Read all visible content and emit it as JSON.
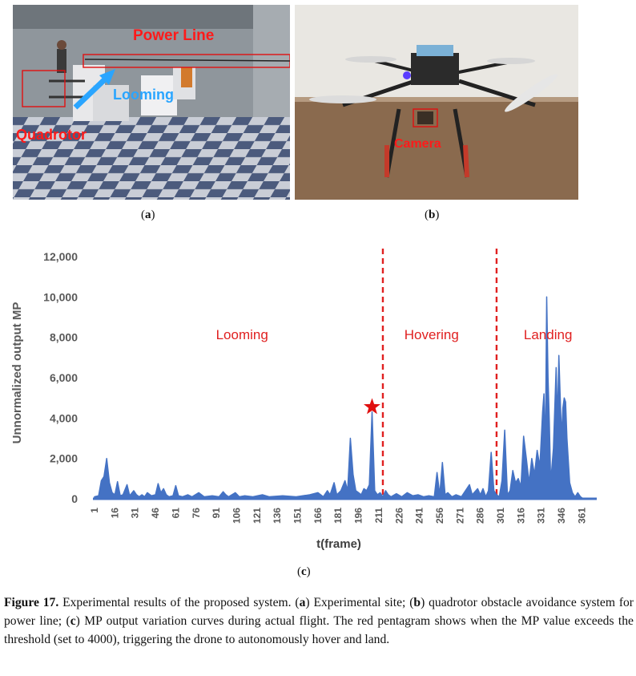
{
  "figure": {
    "panel_a": {
      "annotations": {
        "power_line": "Power Line",
        "looming": "Looming",
        "quadrotor": "Quadrotor"
      },
      "sublabel_letter": "a"
    },
    "panel_b": {
      "annotations": {
        "camera": "Camera"
      },
      "sublabel_letter": "b"
    },
    "panel_c": {
      "sublabel_letter": "c"
    },
    "caption": {
      "label": "Figure 17.",
      "text_1": " Experimental results of the proposed system. (",
      "a": "a",
      "text_2": ") Experimental site; (",
      "b": "b",
      "text_3": ") quadrotor obstacle avoidance system for power line; (",
      "c": "c",
      "text_4": ") MP output variation curves during actual flight.  The red pentagram shows when the MP value exceeds the threshold (set to 4000), triggering the drone to autonomously hover and land."
    }
  },
  "chart_data": {
    "type": "area",
    "xlabel": "t(frame)",
    "ylabel": "Unnormalized output MP",
    "ylim": [
      0,
      12000
    ],
    "yticks": [
      0,
      2000,
      4000,
      6000,
      8000,
      10000,
      12000
    ],
    "ytick_labels": [
      "0",
      "2,000",
      "4,000",
      "6,000",
      "8,000",
      "10,000",
      "12,000"
    ],
    "xlim": [
      1,
      372
    ],
    "xtick_labels": [
      "1",
      "16",
      "31",
      "46",
      "61",
      "76",
      "91",
      "106",
      "121",
      "136",
      "151",
      "166",
      "181",
      "196",
      "211",
      "226",
      "241",
      "256",
      "271",
      "286",
      "301",
      "316",
      "331",
      "346",
      "361"
    ],
    "grid": false,
    "legend": "none",
    "series_color": "#4472c4",
    "phase_line_color": "#e02020",
    "phases": [
      {
        "label": "Looming",
        "x_label": 110
      },
      {
        "label": "Hovering",
        "x_label": 250
      },
      {
        "label": "Landing",
        "x_label": 336
      }
    ],
    "phase_boundaries": [
      214,
      298
    ],
    "threshold_marker": {
      "x": 206,
      "y": 4550,
      "color": "#e01010"
    },
    "points": [
      [
        1,
        100
      ],
      [
        4,
        150
      ],
      [
        6,
        900
      ],
      [
        8,
        1100
      ],
      [
        10,
        2000
      ],
      [
        12,
        800
      ],
      [
        14,
        300
      ],
      [
        16,
        200
      ],
      [
        18,
        850
      ],
      [
        20,
        150
      ],
      [
        22,
        200
      ],
      [
        25,
        700
      ],
      [
        27,
        150
      ],
      [
        30,
        400
      ],
      [
        32,
        200
      ],
      [
        34,
        100
      ],
      [
        36,
        200
      ],
      [
        38,
        100
      ],
      [
        40,
        300
      ],
      [
        43,
        150
      ],
      [
        46,
        200
      ],
      [
        48,
        750
      ],
      [
        50,
        300
      ],
      [
        52,
        500
      ],
      [
        54,
        200
      ],
      [
        56,
        100
      ],
      [
        59,
        150
      ],
      [
        61,
        650
      ],
      [
        63,
        150
      ],
      [
        66,
        100
      ],
      [
        70,
        200
      ],
      [
        73,
        100
      ],
      [
        78,
        300
      ],
      [
        82,
        100
      ],
      [
        88,
        150
      ],
      [
        93,
        100
      ],
      [
        96,
        350
      ],
      [
        98,
        200
      ],
      [
        100,
        100
      ],
      [
        105,
        300
      ],
      [
        108,
        100
      ],
      [
        112,
        150
      ],
      [
        118,
        100
      ],
      [
        125,
        200
      ],
      [
        130,
        100
      ],
      [
        140,
        150
      ],
      [
        150,
        100
      ],
      [
        160,
        200
      ],
      [
        166,
        300
      ],
      [
        170,
        100
      ],
      [
        173,
        400
      ],
      [
        175,
        200
      ],
      [
        178,
        800
      ],
      [
        180,
        200
      ],
      [
        183,
        400
      ],
      [
        186,
        900
      ],
      [
        188,
        400
      ],
      [
        190,
        3000
      ],
      [
        192,
        1200
      ],
      [
        194,
        400
      ],
      [
        196,
        300
      ],
      [
        198,
        200
      ],
      [
        200,
        500
      ],
      [
        202,
        400
      ],
      [
        204,
        700
      ],
      [
        206,
        4300
      ],
      [
        208,
        400
      ],
      [
        210,
        200
      ],
      [
        212,
        300
      ],
      [
        214,
        100
      ],
      [
        216,
        400
      ],
      [
        218,
        200
      ],
      [
        220,
        100
      ],
      [
        224,
        250
      ],
      [
        228,
        100
      ],
      [
        232,
        300
      ],
      [
        236,
        150
      ],
      [
        240,
        200
      ],
      [
        244,
        100
      ],
      [
        248,
        150
      ],
      [
        252,
        100
      ],
      [
        254,
        1300
      ],
      [
        256,
        200
      ],
      [
        258,
        1800
      ],
      [
        260,
        200
      ],
      [
        262,
        300
      ],
      [
        265,
        100
      ],
      [
        268,
        200
      ],
      [
        272,
        100
      ],
      [
        278,
        700
      ],
      [
        280,
        200
      ],
      [
        284,
        500
      ],
      [
        286,
        200
      ],
      [
        288,
        500
      ],
      [
        290,
        100
      ],
      [
        292,
        400
      ],
      [
        294,
        2300
      ],
      [
        296,
        400
      ],
      [
        298,
        200
      ],
      [
        300,
        100
      ],
      [
        302,
        900
      ],
      [
        304,
        3400
      ],
      [
        306,
        200
      ],
      [
        308,
        400
      ],
      [
        310,
        1400
      ],
      [
        312,
        800
      ],
      [
        314,
        1000
      ],
      [
        316,
        600
      ],
      [
        318,
        3100
      ],
      [
        320,
        2000
      ],
      [
        322,
        800
      ],
      [
        324,
        2000
      ],
      [
        326,
        1200
      ],
      [
        328,
        2400
      ],
      [
        330,
        1600
      ],
      [
        332,
        4300
      ],
      [
        333,
        5200
      ],
      [
        334,
        2200
      ],
      [
        335,
        10000
      ],
      [
        336,
        6000
      ],
      [
        337,
        3800
      ],
      [
        338,
        800
      ],
      [
        340,
        2500
      ],
      [
        342,
        6500
      ],
      [
        343,
        3800
      ],
      [
        344,
        7100
      ],
      [
        345,
        5000
      ],
      [
        346,
        3000
      ],
      [
        347,
        4500
      ],
      [
        348,
        5000
      ],
      [
        349,
        4800
      ],
      [
        350,
        3000
      ],
      [
        352,
        800
      ],
      [
        354,
        300
      ],
      [
        356,
        100
      ],
      [
        358,
        300
      ],
      [
        360,
        100
      ],
      [
        362,
        0
      ]
    ]
  }
}
